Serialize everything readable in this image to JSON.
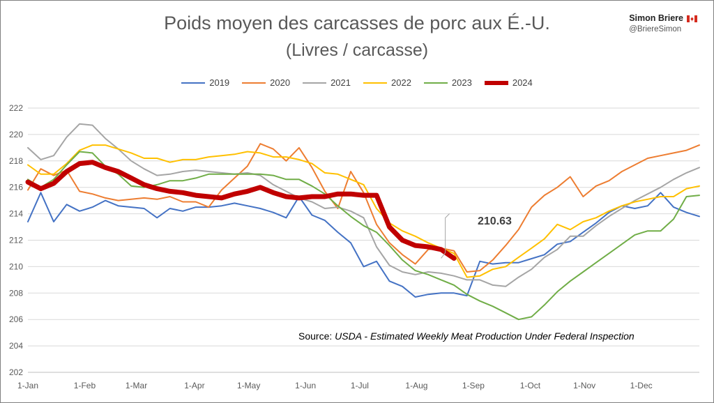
{
  "author": {
    "name": "Simon Briere",
    "handle": "@BriereSimon"
  },
  "chart_data": {
    "type": "line",
    "title": "Poids moyen des carcasses de porc aux É.-U.",
    "subtitle": "(Livres / carcasse)",
    "source_prefix": "Source:",
    "source_text": "USDA - Estimated Weekly Meat Production Under Federal Inspection",
    "xlabel": "",
    "ylabel": "",
    "ylim": [
      202,
      222
    ],
    "yticks": [
      202,
      204,
      206,
      208,
      210,
      212,
      214,
      216,
      218,
      220,
      222
    ],
    "xlim": [
      1,
      53
    ],
    "xtick_weeks": [
      1,
      5.4,
      9.4,
      13.9,
      18.1,
      22.5,
      26.7,
      31.1,
      35.5,
      39.9,
      44.1,
      48.5
    ],
    "xtick_labels": [
      "1-Jan",
      "1-Feb",
      "1-Mar",
      "1-Apr",
      "1-May",
      "1-Jun",
      "1-Jul",
      "1-Aug",
      "1-Sep",
      "1-Oct",
      "1-Nov",
      "1-Dec"
    ],
    "grid": true,
    "legend_position": "top",
    "annotation": {
      "text": "210.63",
      "series": "2024",
      "week": 33
    },
    "series": [
      {
        "name": "2019",
        "color": "#4472c4",
        "width": 2,
        "values": [
          213.4,
          215.6,
          213.4,
          214.7,
          214.2,
          214.5,
          215.0,
          214.6,
          214.5,
          214.4,
          213.7,
          214.4,
          214.2,
          214.5,
          214.5,
          214.6,
          214.8,
          214.6,
          214.4,
          214.1,
          213.7,
          215.3,
          213.9,
          213.5,
          212.6,
          211.8,
          210.0,
          210.4,
          208.9,
          208.5,
          207.7,
          207.9,
          208.0,
          208.0,
          207.8,
          210.4,
          210.2,
          210.3,
          210.3,
          210.6,
          210.9,
          211.7,
          211.9,
          212.6,
          213.3,
          214.1,
          214.6,
          214.4,
          214.6,
          215.6,
          214.5,
          214.1,
          213.8
        ]
      },
      {
        "name": "2020",
        "color": "#ed7d31",
        "width": 2,
        "values": [
          215.8,
          217.4,
          216.9,
          217.3,
          215.7,
          215.5,
          215.2,
          215.0,
          215.1,
          215.2,
          215.1,
          215.3,
          214.9,
          214.9,
          214.5,
          215.8,
          216.7,
          217.6,
          219.3,
          218.9,
          218.0,
          219.0,
          217.5,
          215.7,
          214.4,
          217.2,
          215.6,
          213.2,
          211.8,
          210.9,
          210.2,
          211.3,
          211.4,
          211.2,
          209.6,
          209.7,
          210.5,
          211.6,
          212.8,
          214.5,
          215.4,
          216.0,
          216.8,
          215.3,
          216.1,
          216.5,
          217.2,
          217.7,
          218.2,
          218.4,
          218.6,
          218.8,
          219.2
        ]
      },
      {
        "name": "2021",
        "color": "#a5a5a5",
        "width": 2,
        "values": [
          219.0,
          218.1,
          218.4,
          219.8,
          220.8,
          220.7,
          219.7,
          218.9,
          218.0,
          217.4,
          216.9,
          217.0,
          217.2,
          217.3,
          217.2,
          217.1,
          217.0,
          217.1,
          216.9,
          216.2,
          215.7,
          215.2,
          214.9,
          214.4,
          214.5,
          214.2,
          213.7,
          211.5,
          210.1,
          209.6,
          209.4,
          209.6,
          209.5,
          209.3,
          209.0,
          209.0,
          208.6,
          208.5,
          209.2,
          209.8,
          210.7,
          211.3,
          212.3,
          212.3,
          213.1,
          213.8,
          214.4,
          215.0,
          215.5,
          216.0,
          216.6,
          217.1,
          217.5
        ]
      },
      {
        "name": "2022",
        "color": "#ffc000",
        "width": 2,
        "values": [
          217.7,
          217.0,
          217.0,
          217.8,
          218.8,
          219.2,
          219.2,
          218.9,
          218.6,
          218.2,
          218.2,
          217.9,
          218.1,
          218.1,
          218.3,
          218.4,
          218.5,
          218.7,
          218.6,
          218.3,
          218.3,
          218.1,
          217.8,
          217.1,
          217.0,
          216.6,
          216.2,
          214.4,
          213.3,
          212.7,
          212.3,
          211.8,
          211.4,
          211.0,
          209.2,
          209.3,
          209.8,
          210.0,
          210.7,
          211.4,
          212.1,
          213.2,
          212.8,
          213.4,
          213.7,
          214.2,
          214.6,
          214.9,
          215.1,
          215.3,
          215.3,
          215.9,
          216.1
        ]
      },
      {
        "name": "2023",
        "color": "#70ad47",
        "width": 2,
        "values": [
          216.6,
          216.0,
          216.6,
          217.7,
          218.7,
          218.6,
          217.6,
          217.0,
          216.1,
          216.0,
          216.2,
          216.5,
          216.5,
          216.7,
          217.0,
          217.0,
          217.0,
          217.0,
          217.0,
          216.9,
          216.6,
          216.6,
          216.1,
          215.5,
          214.6,
          213.8,
          213.1,
          212.6,
          211.6,
          210.5,
          209.7,
          209.4,
          209.0,
          208.6,
          207.9,
          207.4,
          207.0,
          206.5,
          206.0,
          206.2,
          207.1,
          208.1,
          208.9,
          209.6,
          210.3,
          211.0,
          211.7,
          212.4,
          212.7,
          212.7,
          213.6,
          215.3,
          215.4
        ]
      },
      {
        "name": "2024",
        "color": "#c00000",
        "width": 7,
        "values": [
          216.4,
          215.9,
          216.3,
          217.2,
          217.8,
          217.9,
          217.5,
          217.2,
          216.7,
          216.2,
          215.9,
          215.7,
          215.6,
          215.4,
          215.3,
          215.2,
          215.5,
          215.7,
          216.0,
          215.6,
          215.3,
          215.2,
          215.3,
          215.3,
          215.5,
          215.5,
          215.4,
          215.4,
          213.0,
          212.0,
          211.6,
          211.5,
          211.3,
          210.63
        ]
      }
    ]
  }
}
